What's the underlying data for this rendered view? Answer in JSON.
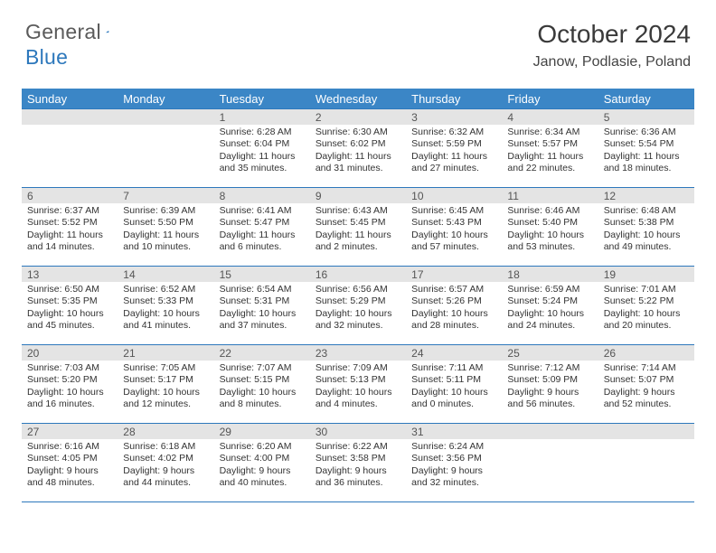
{
  "logo": {
    "word1": "General",
    "word2": "Blue"
  },
  "title": "October 2024",
  "location": "Janow, Podlasie, Poland",
  "colors": {
    "header_bg": "#3b86c6",
    "rule": "#2d78bc",
    "daynum_bg": "#e4e4e4",
    "text": "#333333",
    "logo_gray": "#5a5a5a",
    "logo_blue": "#2d78bc",
    "page_bg": "#ffffff"
  },
  "dayNames": [
    "Sunday",
    "Monday",
    "Tuesday",
    "Wednesday",
    "Thursday",
    "Friday",
    "Saturday"
  ],
  "weeks": [
    [
      {
        "n": "",
        "blank": true
      },
      {
        "n": "",
        "blank": true
      },
      {
        "n": "1",
        "sr": "6:28 AM",
        "ss": "6:04 PM",
        "dl": "11 hours and 35 minutes."
      },
      {
        "n": "2",
        "sr": "6:30 AM",
        "ss": "6:02 PM",
        "dl": "11 hours and 31 minutes."
      },
      {
        "n": "3",
        "sr": "6:32 AM",
        "ss": "5:59 PM",
        "dl": "11 hours and 27 minutes."
      },
      {
        "n": "4",
        "sr": "6:34 AM",
        "ss": "5:57 PM",
        "dl": "11 hours and 22 minutes."
      },
      {
        "n": "5",
        "sr": "6:36 AM",
        "ss": "5:54 PM",
        "dl": "11 hours and 18 minutes."
      }
    ],
    [
      {
        "n": "6",
        "sr": "6:37 AM",
        "ss": "5:52 PM",
        "dl": "11 hours and 14 minutes."
      },
      {
        "n": "7",
        "sr": "6:39 AM",
        "ss": "5:50 PM",
        "dl": "11 hours and 10 minutes."
      },
      {
        "n": "8",
        "sr": "6:41 AM",
        "ss": "5:47 PM",
        "dl": "11 hours and 6 minutes."
      },
      {
        "n": "9",
        "sr": "6:43 AM",
        "ss": "5:45 PM",
        "dl": "11 hours and 2 minutes."
      },
      {
        "n": "10",
        "sr": "6:45 AM",
        "ss": "5:43 PM",
        "dl": "10 hours and 57 minutes."
      },
      {
        "n": "11",
        "sr": "6:46 AM",
        "ss": "5:40 PM",
        "dl": "10 hours and 53 minutes."
      },
      {
        "n": "12",
        "sr": "6:48 AM",
        "ss": "5:38 PM",
        "dl": "10 hours and 49 minutes."
      }
    ],
    [
      {
        "n": "13",
        "sr": "6:50 AM",
        "ss": "5:35 PM",
        "dl": "10 hours and 45 minutes."
      },
      {
        "n": "14",
        "sr": "6:52 AM",
        "ss": "5:33 PM",
        "dl": "10 hours and 41 minutes."
      },
      {
        "n": "15",
        "sr": "6:54 AM",
        "ss": "5:31 PM",
        "dl": "10 hours and 37 minutes."
      },
      {
        "n": "16",
        "sr": "6:56 AM",
        "ss": "5:29 PM",
        "dl": "10 hours and 32 minutes."
      },
      {
        "n": "17",
        "sr": "6:57 AM",
        "ss": "5:26 PM",
        "dl": "10 hours and 28 minutes."
      },
      {
        "n": "18",
        "sr": "6:59 AM",
        "ss": "5:24 PM",
        "dl": "10 hours and 24 minutes."
      },
      {
        "n": "19",
        "sr": "7:01 AM",
        "ss": "5:22 PM",
        "dl": "10 hours and 20 minutes."
      }
    ],
    [
      {
        "n": "20",
        "sr": "7:03 AM",
        "ss": "5:20 PM",
        "dl": "10 hours and 16 minutes."
      },
      {
        "n": "21",
        "sr": "7:05 AM",
        "ss": "5:17 PM",
        "dl": "10 hours and 12 minutes."
      },
      {
        "n": "22",
        "sr": "7:07 AM",
        "ss": "5:15 PM",
        "dl": "10 hours and 8 minutes."
      },
      {
        "n": "23",
        "sr": "7:09 AM",
        "ss": "5:13 PM",
        "dl": "10 hours and 4 minutes."
      },
      {
        "n": "24",
        "sr": "7:11 AM",
        "ss": "5:11 PM",
        "dl": "10 hours and 0 minutes."
      },
      {
        "n": "25",
        "sr": "7:12 AM",
        "ss": "5:09 PM",
        "dl": "9 hours and 56 minutes."
      },
      {
        "n": "26",
        "sr": "7:14 AM",
        "ss": "5:07 PM",
        "dl": "9 hours and 52 minutes."
      }
    ],
    [
      {
        "n": "27",
        "sr": "6:16 AM",
        "ss": "4:05 PM",
        "dl": "9 hours and 48 minutes."
      },
      {
        "n": "28",
        "sr": "6:18 AM",
        "ss": "4:02 PM",
        "dl": "9 hours and 44 minutes."
      },
      {
        "n": "29",
        "sr": "6:20 AM",
        "ss": "4:00 PM",
        "dl": "9 hours and 40 minutes."
      },
      {
        "n": "30",
        "sr": "6:22 AM",
        "ss": "3:58 PM",
        "dl": "9 hours and 36 minutes."
      },
      {
        "n": "31",
        "sr": "6:24 AM",
        "ss": "3:56 PM",
        "dl": "9 hours and 32 minutes."
      },
      {
        "n": "",
        "blank": true
      },
      {
        "n": "",
        "blank": true
      }
    ]
  ],
  "labels": {
    "sunrise": "Sunrise:",
    "sunset": "Sunset:",
    "daylight": "Daylight:"
  }
}
